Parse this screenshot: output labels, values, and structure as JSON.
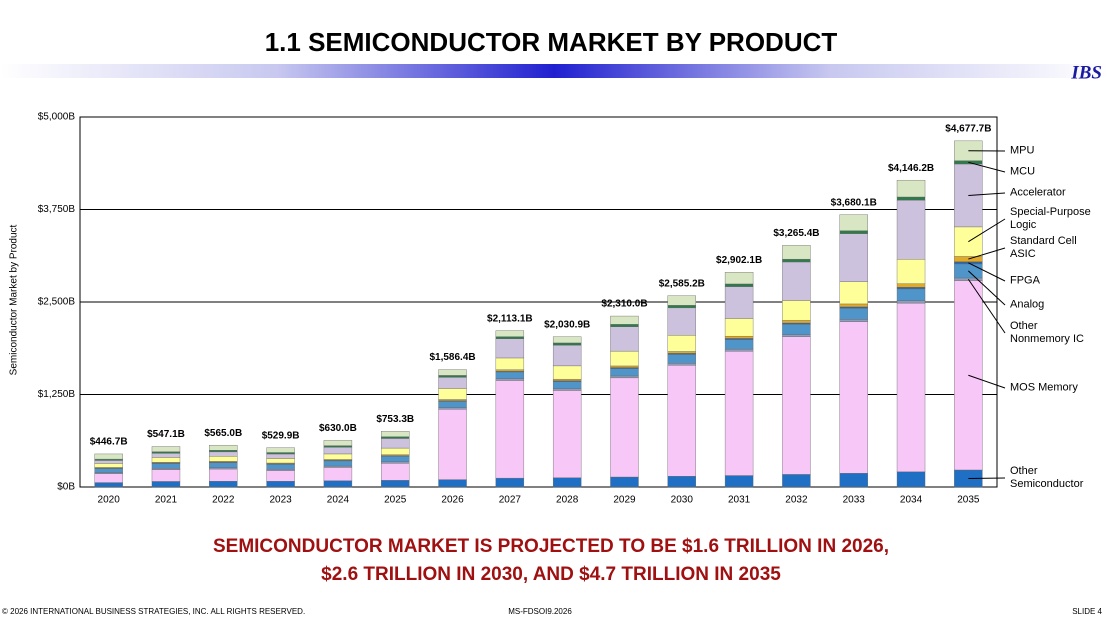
{
  "header": {
    "title": "1.1  SEMICONDUCTOR MARKET BY PRODUCT",
    "logo": "IBS"
  },
  "chart_data": {
    "type": "stacked_bar",
    "y_label": "Semiconductor Market by Product",
    "categories": [
      "2020",
      "2021",
      "2022",
      "2023",
      "2024",
      "2025",
      "2026",
      "2027",
      "2028",
      "2029",
      "2030",
      "2031",
      "2032",
      "2033",
      "2034",
      "2035"
    ],
    "ylim": [
      0,
      5000
    ],
    "yticks": [
      {
        "value": 0,
        "label": "$0B"
      },
      {
        "value": 1250,
        "label": "$1,250B"
      },
      {
        "value": 2500,
        "label": "$2,500B"
      },
      {
        "value": 3750,
        "label": "$3,750B"
      },
      {
        "value": 5000,
        "label": "$5,000B"
      }
    ],
    "grid": true,
    "legend": "right",
    "series": [
      {
        "name": "Other Semiconductor",
        "color": "#1f6fc4",
        "values": [
          60,
          75,
          78,
          78,
          85,
          90,
          100,
          120,
          125,
          135,
          145,
          155,
          170,
          185,
          205,
          230
        ]
      },
      {
        "name": "MOS Memory",
        "color": "#f7c8f7",
        "values": [
          120,
          160,
          165,
          145,
          180,
          230,
          950,
          1320,
          1180,
          1340,
          1500,
          1680,
          1860,
          2050,
          2280,
          2560
        ]
      },
      {
        "name": "Other Nonmemory IC",
        "color": "#8f9cba",
        "values": [
          15,
          18,
          18,
          17,
          18,
          20,
          22,
          25,
          25,
          26,
          27,
          28,
          29,
          30,
          32,
          35
        ]
      },
      {
        "name": "Analog",
        "color": "#4f95c9",
        "values": [
          55,
          65,
          68,
          66,
          70,
          75,
          85,
          90,
          95,
          100,
          120,
          130,
          140,
          150,
          160,
          190
        ]
      },
      {
        "name": "FPGA",
        "color": "#2a66a8",
        "values": [
          6,
          7,
          8,
          8,
          8,
          9,
          10,
          11,
          12,
          13,
          14,
          15,
          17,
          19,
          22,
          30
        ]
      },
      {
        "name": "Standard Cell ASIC",
        "color": "#e3a922",
        "values": [
          8,
          10,
          10,
          10,
          11,
          12,
          15,
          18,
          20,
          22,
          25,
          30,
          35,
          40,
          48,
          70
        ]
      },
      {
        "name": "Special-Purpose Logic",
        "color": "#ffff99",
        "values": [
          55,
          65,
          68,
          62,
          75,
          90,
          150,
          160,
          180,
          200,
          220,
          240,
          270,
          300,
          330,
          400
        ]
      },
      {
        "name": "Accelerator",
        "color": "#cdc2de",
        "values": [
          40,
          55,
          60,
          60,
          90,
          130,
          150,
          260,
          280,
          330,
          370,
          430,
          520,
          650,
          800,
          850
        ]
      },
      {
        "name": "MCU",
        "color": "#2d7a4a",
        "values": [
          18,
          22,
          22,
          20,
          22,
          24,
          26,
          28,
          30,
          32,
          34,
          36,
          38,
          40,
          42,
          45
        ]
      },
      {
        "name": "MPU",
        "color": "#d9e6c3",
        "values": [
          69.7,
          70.1,
          68,
          63.9,
          71,
          73.3,
          78.4,
          81.1,
          83.9,
          112,
          130.2,
          158.1,
          186.4,
          216.1,
          227.2,
          267.7
        ]
      }
    ],
    "totals": {
      "values": [
        446.7,
        547.1,
        565.0,
        529.9,
        630.0,
        753.3,
        1586.4,
        2113.1,
        2030.9,
        2310.0,
        2585.2,
        2902.1,
        3265.4,
        3680.1,
        4146.2,
        4677.7
      ],
      "value_labels": [
        "$446.7B",
        "$547.1B",
        "$565.0B",
        "$529.9B",
        "$630.0B",
        "$753.3B",
        "$1,586.4B",
        "$2,113.1B",
        "$2,030.9B",
        "$2,310.0B",
        "$2,585.2B",
        "$2,902.1B",
        "$3,265.4B",
        "$3,680.1B",
        "$4,146.2B",
        "$4,677.7B"
      ]
    }
  },
  "headline": [
    "SEMICONDUCTOR MARKET IS PROJECTED TO BE $1.6 TRILLION IN 2026,",
    "$2.6 TRILLION IN 2030, AND $4.7 TRILLION IN 2035"
  ],
  "footer": {
    "copyright": "© 2026 INTERNATIONAL BUSINESS STRATEGIES, INC. ALL RIGHTS RESERVED.",
    "code": "MS-FDSOI9.2026",
    "slide": "SLIDE 4"
  }
}
